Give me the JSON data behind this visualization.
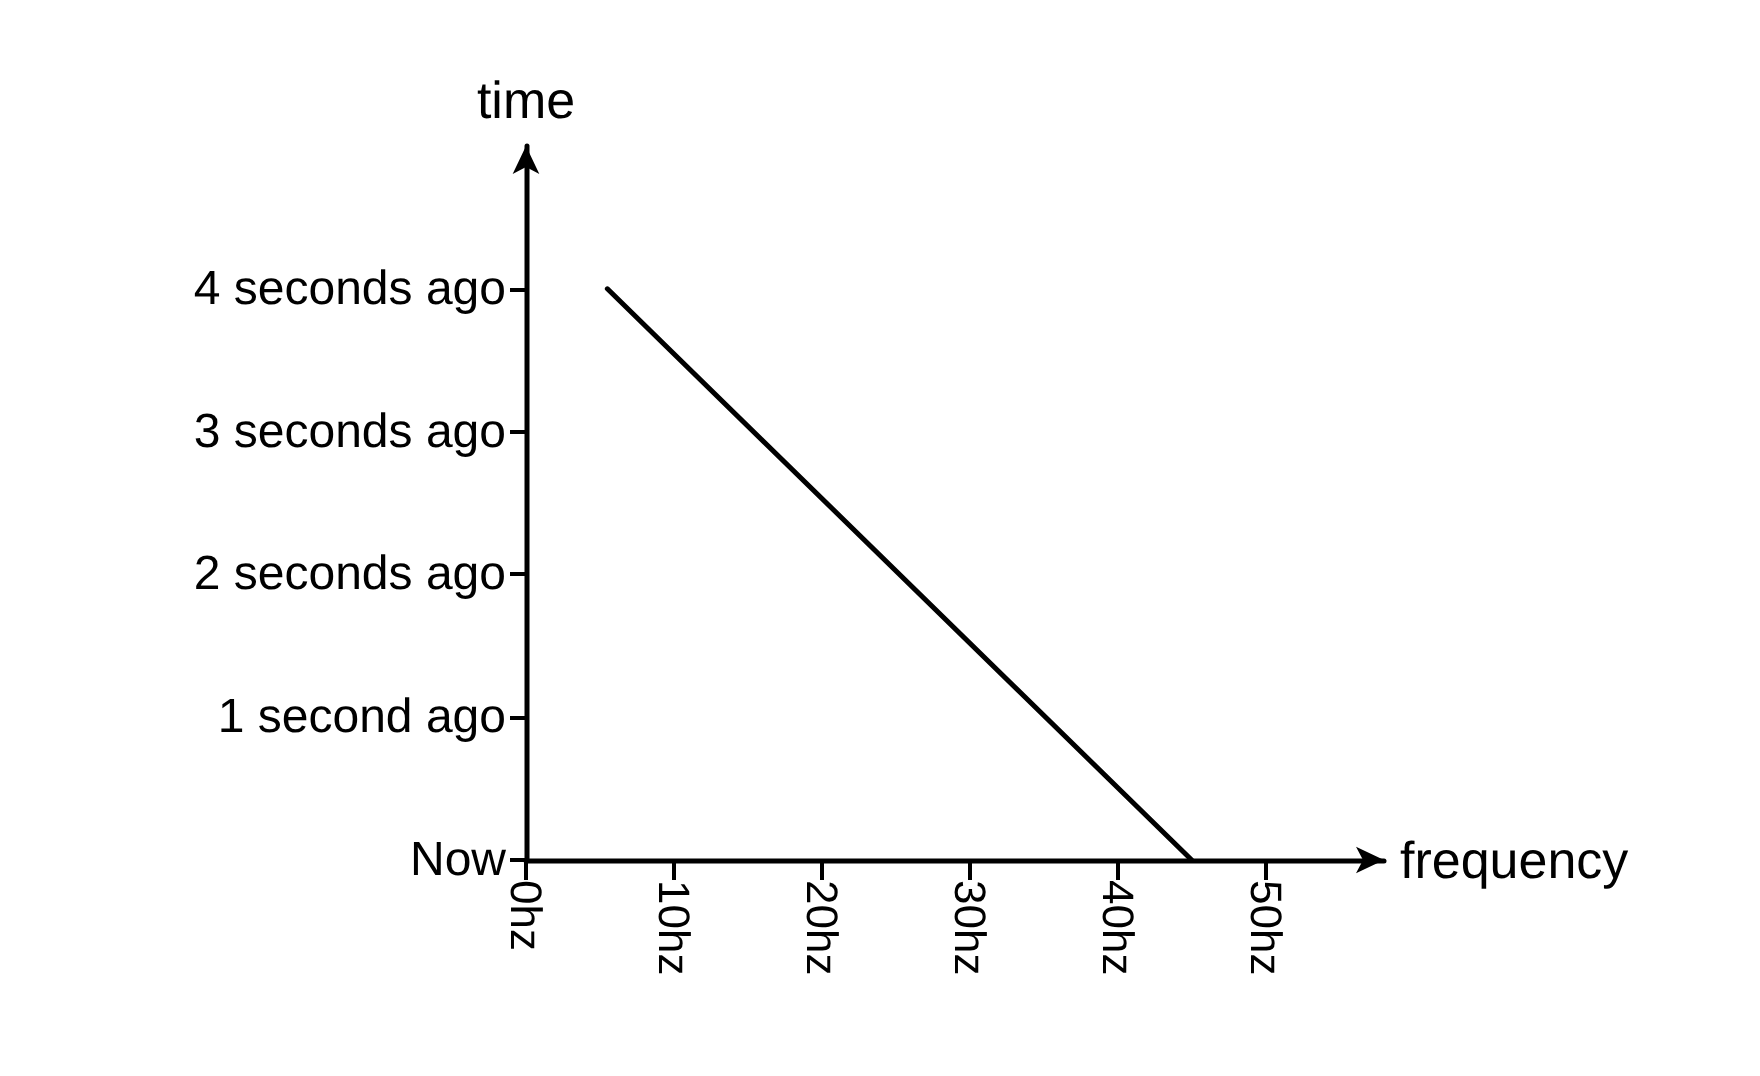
{
  "chart_data": {
    "type": "line",
    "xlabel": "frequency",
    "ylabel": "time",
    "x": [
      5.5,
      45
    ],
    "values": [
      4,
      0
    ],
    "color": "#000000",
    "xlim": [
      0,
      58
    ],
    "ylim": [
      0,
      5
    ],
    "xticks": [
      {
        "value": 0,
        "label": "0hz"
      },
      {
        "value": 10,
        "label": "10hz"
      },
      {
        "value": 20,
        "label": "20hz"
      },
      {
        "value": 30,
        "label": "30hz"
      },
      {
        "value": 40,
        "label": "40hz"
      },
      {
        "value": 50,
        "label": "50hz"
      }
    ],
    "yticks": [
      {
        "value": 0,
        "label": "Now"
      },
      {
        "value": 1,
        "label": "1 second ago"
      },
      {
        "value": 2,
        "label": "2 seconds ago"
      },
      {
        "value": 3,
        "label": "3 seconds ago"
      },
      {
        "value": 4,
        "label": "4 seconds ago"
      }
    ],
    "grid": false,
    "marker": "none",
    "line_style": "solid"
  }
}
